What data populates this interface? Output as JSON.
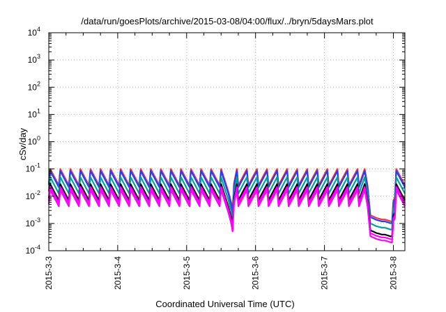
{
  "chart_data": {
    "type": "line",
    "title": "/data/run/goesPlots/archive/2015-03-08/04:00/flux/../bryn/5daysMars.plot",
    "xlabel": "Coordinated Universal Time (UTC)",
    "ylabel": "cSv/day",
    "yscale": "log",
    "ylim": [
      0.0001,
      10000
    ],
    "xlim": [
      "2015-03-03 00:00",
      "2015-03-08 04:00"
    ],
    "grid": true,
    "x_tick_labels": [
      "2015-3-3",
      "2015-3-4",
      "2015-3-5",
      "2015-3-6",
      "2015-3-7",
      "2015-3-8"
    ],
    "y_ticks": [
      {
        "value": 0.0001,
        "base": "10",
        "exp": "-4"
      },
      {
        "value": 0.001,
        "base": "10",
        "exp": "-3"
      },
      {
        "value": 0.01,
        "base": "10",
        "exp": "-2"
      },
      {
        "value": 0.1,
        "base": "10",
        "exp": "-1"
      },
      {
        "value": 1,
        "base": "10",
        "exp": "0"
      },
      {
        "value": 10,
        "base": "10",
        "exp": "1"
      },
      {
        "value": 100,
        "base": "10",
        "exp": "2"
      },
      {
        "value": 1000,
        "base": "10",
        "exp": "3"
      },
      {
        "value": 10000,
        "base": "10",
        "exp": "4"
      }
    ],
    "series_colors": [
      "#ff3030",
      "#1f3fff",
      "#00a0a0",
      "#000000",
      "#ff00ff",
      "#ff00ff"
    ],
    "series_scale": [
      1.0,
      0.85,
      0.5,
      0.28,
      0.22,
      0.17
    ],
    "base_curve": {
      "x": [
        "2015-03-03 00:00",
        "2015-03-03 00:30",
        "2015-03-03 03:30",
        "2015-03-03 04:00",
        "2015-03-03 07:00",
        "2015-03-03 07:30",
        "2015-03-03 10:30",
        "2015-03-03 11:00",
        "2015-03-03 14:00",
        "2015-03-03 14:30",
        "2015-03-03 17:30",
        "2015-03-03 18:00",
        "2015-03-03 21:00",
        "2015-03-03 21:30",
        "2015-03-04 00:30",
        "2015-03-04 01:00",
        "2015-03-04 04:00",
        "2015-03-04 04:30",
        "2015-03-04 07:30",
        "2015-03-04 08:00",
        "2015-03-04 11:00",
        "2015-03-04 11:30",
        "2015-03-04 14:30",
        "2015-03-04 15:00",
        "2015-03-04 18:00",
        "2015-03-04 18:30",
        "2015-03-04 21:30",
        "2015-03-04 22:00",
        "2015-03-05 01:00",
        "2015-03-05 01:30",
        "2015-03-05 04:30",
        "2015-03-05 05:00",
        "2015-03-05 08:00",
        "2015-03-05 08:30",
        "2015-03-05 11:30",
        "2015-03-05 12:00",
        "2015-03-05 14:30",
        "2015-03-05 15:30",
        "2015-03-05 16:00",
        "2015-03-05 16:30",
        "2015-03-05 17:30",
        "2015-03-05 18:00",
        "2015-03-05 21:00",
        "2015-03-05 21:30",
        "2015-03-06 00:30",
        "2015-03-06 01:00",
        "2015-03-06 04:00",
        "2015-03-06 04:30",
        "2015-03-06 07:30",
        "2015-03-06 08:00",
        "2015-03-06 11:00",
        "2015-03-06 11:30",
        "2015-03-06 14:30",
        "2015-03-06 15:00",
        "2015-03-06 18:00",
        "2015-03-06 18:30",
        "2015-03-06 21:30",
        "2015-03-06 22:00",
        "2015-03-07 01:00",
        "2015-03-07 01:30",
        "2015-03-07 04:30",
        "2015-03-07 05:00",
        "2015-03-07 08:00",
        "2015-03-07 08:30",
        "2015-03-07 11:30",
        "2015-03-07 12:00",
        "2015-03-07 14:00",
        "2015-03-07 15:00",
        "2015-03-07 16:00",
        "2015-03-07 17:00",
        "2015-03-07 18:00",
        "2015-03-07 19:00",
        "2015-03-07 20:00",
        "2015-03-07 21:00",
        "2015-03-07 22:00",
        "2015-03-07 23:00",
        "2015-03-07 23:30",
        "2015-03-08 00:00",
        "2015-03-08 00:30",
        "2015-03-08 01:00",
        "2015-03-08 04:00"
      ],
      "y": [
        0.03,
        0.1,
        0.025,
        0.1,
        0.025,
        0.1,
        0.025,
        0.1,
        0.025,
        0.1,
        0.025,
        0.1,
        0.025,
        0.1,
        0.025,
        0.1,
        0.025,
        0.1,
        0.025,
        0.1,
        0.025,
        0.1,
        0.025,
        0.1,
        0.025,
        0.1,
        0.025,
        0.1,
        0.025,
        0.1,
        0.025,
        0.1,
        0.025,
        0.1,
        0.025,
        0.1,
        0.015,
        0.006,
        0.003,
        0.03,
        0.1,
        0.025,
        0.1,
        0.025,
        0.1,
        0.025,
        0.1,
        0.025,
        0.1,
        0.025,
        0.1,
        0.025,
        0.1,
        0.025,
        0.1,
        0.025,
        0.1,
        0.025,
        0.1,
        0.025,
        0.1,
        0.025,
        0.1,
        0.025,
        0.1,
        0.025,
        0.1,
        0.025,
        0.002,
        0.0018,
        0.0016,
        0.0015,
        0.0014,
        0.0014,
        0.0013,
        0.0012,
        0.0012,
        0.007,
        0.009,
        0.1,
        0.025
      ]
    }
  }
}
